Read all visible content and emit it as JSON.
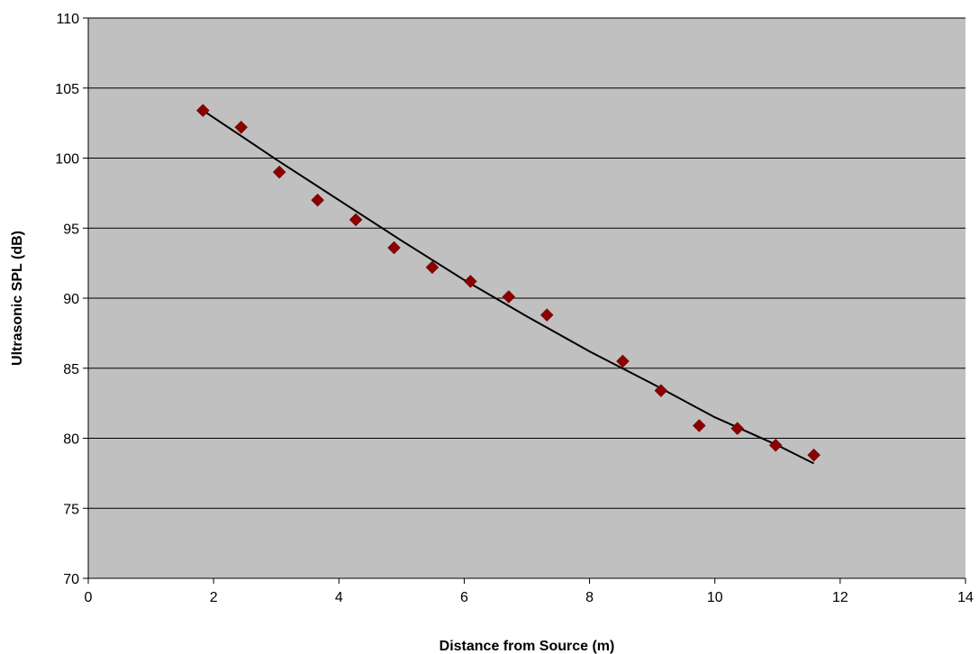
{
  "chart_data": {
    "type": "scatter",
    "title": "",
    "xlabel": "Distance from Source (m)",
    "ylabel": "Ultrasonic SPL (dB)",
    "xlim": [
      0,
      14
    ],
    "ylim": [
      70,
      110
    ],
    "x_ticks": [
      0,
      2,
      4,
      6,
      8,
      10,
      12,
      14
    ],
    "y_ticks": [
      70,
      75,
      80,
      85,
      90,
      95,
      100,
      105,
      110
    ],
    "x_tick_labels": [
      "0",
      "2",
      "4",
      "6",
      "8",
      "10",
      "12",
      "14"
    ],
    "y_tick_labels": [
      "70",
      "75",
      "80",
      "85",
      "90",
      "95",
      "100",
      "105",
      "110"
    ],
    "grid": "horizontal",
    "legend": "none",
    "series": [
      {
        "marker": "diamond",
        "color": "#8b0000",
        "points": [
          {
            "x": 1.83,
            "y": 103.4
          },
          {
            "x": 2.44,
            "y": 102.2
          },
          {
            "x": 3.05,
            "y": 99.0
          },
          {
            "x": 3.66,
            "y": 97.0
          },
          {
            "x": 4.27,
            "y": 95.6
          },
          {
            "x": 4.88,
            "y": 93.6
          },
          {
            "x": 5.49,
            "y": 92.2
          },
          {
            "x": 6.1,
            "y": 91.2
          },
          {
            "x": 6.71,
            "y": 90.1
          },
          {
            "x": 7.32,
            "y": 88.8
          },
          {
            "x": 8.53,
            "y": 85.5
          },
          {
            "x": 9.14,
            "y": 83.4
          },
          {
            "x": 9.75,
            "y": 80.9
          },
          {
            "x": 10.36,
            "y": 80.7
          },
          {
            "x": 10.97,
            "y": 79.5
          },
          {
            "x": 11.58,
            "y": 78.8
          }
        ]
      }
    ],
    "trendline": {
      "type": "polynomial",
      "color": "#000000",
      "points": [
        {
          "x": 1.83,
          "y": 103.4
        },
        {
          "x": 2.5,
          "y": 101.4
        },
        {
          "x": 3.0,
          "y": 99.9
        },
        {
          "x": 4.0,
          "y": 97.0
        },
        {
          "x": 5.0,
          "y": 94.1
        },
        {
          "x": 6.0,
          "y": 91.3
        },
        {
          "x": 7.0,
          "y": 88.7
        },
        {
          "x": 8.0,
          "y": 86.2
        },
        {
          "x": 9.0,
          "y": 83.9
        },
        {
          "x": 10.0,
          "y": 81.5
        },
        {
          "x": 11.0,
          "y": 79.5
        },
        {
          "x": 11.58,
          "y": 78.2
        }
      ]
    },
    "colors": {
      "plot_background": "#c0c0c0",
      "gridline": "#000000",
      "axis": "#000000"
    }
  }
}
